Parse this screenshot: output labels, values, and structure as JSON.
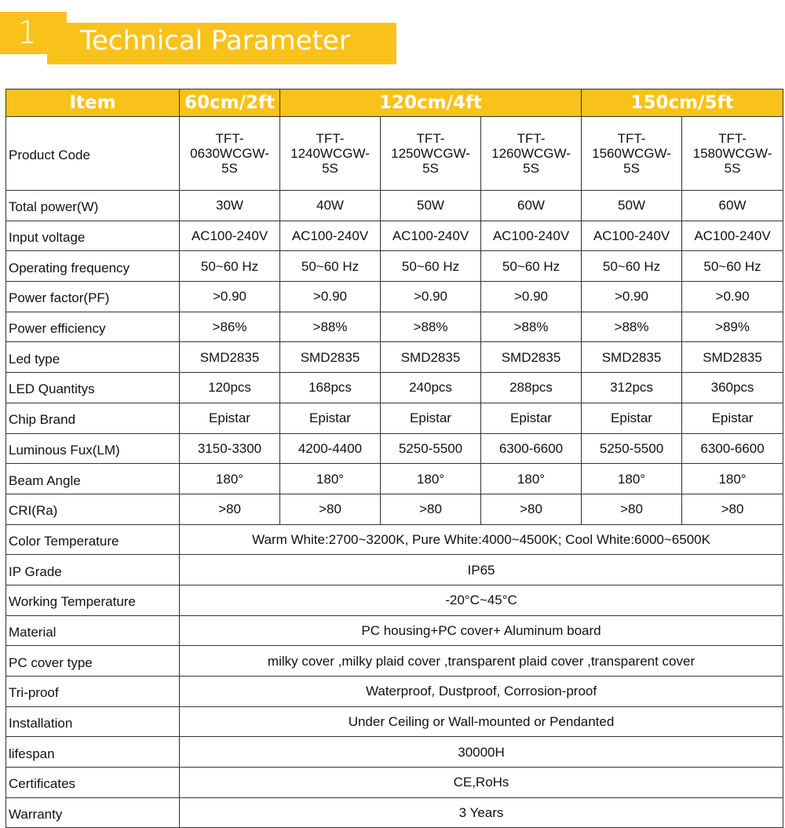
{
  "header": {
    "number": "1",
    "title": "Technical Parameter"
  },
  "table": {
    "group_headers": [
      "Item",
      "60cm/2ft",
      "120cm/4ft",
      "150cm/5ft"
    ],
    "product_code_label": "Product  Code",
    "product_codes": [
      [
        "TFT-",
        "0630WCGW-",
        "5S"
      ],
      [
        "TFT-",
        "1240WCGW-",
        "5S"
      ],
      [
        "TFT-",
        "1250WCGW-",
        "5S"
      ],
      [
        "TFT-",
        "1260WCGW-",
        "5S"
      ],
      [
        "TFT-",
        "1560WCGW-",
        "5S"
      ],
      [
        "TFT-",
        "1580WCGW-",
        "5S"
      ]
    ],
    "rows": [
      {
        "label": "Total power(W)",
        "values": [
          "30W",
          "40W",
          "50W",
          "60W",
          "50W",
          "60W"
        ]
      },
      {
        "label": "Input voltage",
        "values": [
          "AC100-240V",
          "AC100-240V",
          "AC100-240V",
          "AC100-240V",
          "AC100-240V",
          "AC100-240V"
        ]
      },
      {
        "label": "Operating frequency",
        "values": [
          "50~60 Hz",
          "50~60 Hz",
          "50~60 Hz",
          "50~60 Hz",
          "50~60 Hz",
          "50~60 Hz"
        ]
      },
      {
        "label": "Power factor(PF)",
        "values": [
          ">0.90",
          ">0.90",
          ">0.90",
          ">0.90",
          ">0.90",
          ">0.90"
        ]
      },
      {
        "label": "Power efficiency",
        "values": [
          ">86%",
          ">88%",
          ">88%",
          ">88%",
          ">88%",
          ">89%"
        ]
      },
      {
        "label": "Led type",
        "values": [
          "SMD2835",
          "SMD2835",
          "SMD2835",
          "SMD2835",
          "SMD2835",
          "SMD2835"
        ]
      },
      {
        "label": "LED Quantitys",
        "values": [
          "120pcs",
          "168pcs",
          "240pcs",
          "288pcs",
          "312pcs",
          "360pcs"
        ]
      },
      {
        "label": "Chip Brand",
        "values": [
          "Epistar",
          "Epistar",
          "Epistar",
          "Epistar",
          "Epistar",
          "Epistar"
        ]
      },
      {
        "label": "Luminous Fux(LM)",
        "values": [
          "3150-3300",
          "4200-4400",
          "5250-5500",
          "6300-6600",
          "5250-5500",
          "6300-6600"
        ]
      },
      {
        "label": "Beam Angle",
        "values": [
          "180°",
          "180°",
          "180°",
          "180°",
          "180°",
          "180°"
        ]
      },
      {
        "label": "CRI(Ra)",
        "values": [
          ">80",
          ">80",
          ">80",
          ">80",
          ">80",
          ">80"
        ]
      }
    ],
    "shared_rows": [
      {
        "label": "Color Temperature",
        "value": "Warm White:2700~3200K, Pure White:4000~4500K; Cool White:6000~6500K"
      },
      {
        "label": "IP Grade",
        "value": "IP65"
      },
      {
        "label": "Working Temperature",
        "value": "-20°C~45°C"
      },
      {
        "label": "Material",
        "value": "PC housing+PC cover+ Aluminum board"
      },
      {
        "label": "PC cover type",
        "value": "milky cover ,milky plaid cover ,transparent plaid cover ,transparent cover"
      },
      {
        "label": "Tri-proof",
        "value": "Waterproof, Dustproof, Corrosion-proof"
      },
      {
        "label": "Installation",
        "value": "Under Ceiling or Wall-mounted or Pendanted"
      },
      {
        "label": "lifespan",
        "value": "30000H"
      },
      {
        "label": "Certificates",
        "value": "CE,RoHs"
      },
      {
        "label": "Warranty",
        "value": "3 Years"
      }
    ]
  }
}
